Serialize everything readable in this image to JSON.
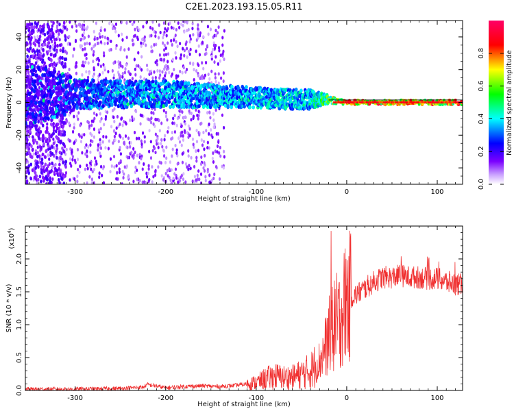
{
  "chart_data": [
    {
      "type": "heatmap",
      "title": "C2E1.2023.193.15.05.R11",
      "xlabel": "Height of straight line (km)",
      "ylabel": "Frequency (Hz)",
      "xlim": [
        -355,
        128
      ],
      "ylim": [
        -50,
        50
      ],
      "xticks": [
        -300,
        -200,
        -100,
        0,
        100
      ],
      "xtick_labels": [
        "-300",
        "-200",
        "-100",
        "0",
        "100"
      ],
      "yticks": [
        -40,
        -20,
        0,
        20,
        40
      ],
      "ytick_labels": [
        "-40",
        "-20",
        "0",
        "20",
        "40"
      ],
      "colorbar": {
        "label": "Normalized spectral amplitude",
        "range": [
          0,
          1
        ],
        "ticks": [
          0.0,
          0.2,
          0.4,
          0.6,
          0.8
        ],
        "tick_labels": [
          "0.0",
          "0.2",
          "0.4",
          "0.6",
          "0.8"
        ],
        "colormap": [
          "#ffffff",
          "#7b00ff",
          "#0000ff",
          "#00ffff",
          "#00ff00",
          "#ffff00",
          "#ff0000",
          "#ff0066"
        ]
      },
      "band": {
        "description_free": true,
        "points": [
          {
            "x": -330,
            "center": 5,
            "half_width": 18,
            "amplitude": 0.25
          },
          {
            "x": -300,
            "center": 5,
            "half_width": 9,
            "amplitude": 0.3
          },
          {
            "x": -250,
            "center": 5,
            "half_width": 8,
            "amplitude": 0.35
          },
          {
            "x": -200,
            "center": 5,
            "half_width": 8,
            "amplitude": 0.4
          },
          {
            "x": -150,
            "center": 4,
            "half_width": 7,
            "amplitude": 0.4
          },
          {
            "x": -100,
            "center": 3,
            "half_width": 6,
            "amplitude": 0.4
          },
          {
            "x": -70,
            "center": 2,
            "half_width": 6,
            "amplitude": 0.45
          },
          {
            "x": -40,
            "center": 2,
            "half_width": 6,
            "amplitude": 0.45
          },
          {
            "x": -25,
            "center": 2,
            "half_width": 3,
            "amplitude": 0.6
          },
          {
            "x": -10,
            "center": 1,
            "half_width": 2,
            "amplitude": 0.75
          },
          {
            "x": 0,
            "center": 0,
            "half_width": 1.5,
            "amplitude": 0.85
          },
          {
            "x": 50,
            "center": 0,
            "half_width": 1.5,
            "amplitude": 0.85
          },
          {
            "x": 128,
            "center": 0,
            "half_width": 1.5,
            "amplitude": 0.85
          }
        ]
      }
    },
    {
      "type": "line",
      "xlabel": "Height of straight line (km)",
      "ylabel": "SNR (10 * v/v)",
      "y_multiplier_label": "(x10",
      "y_multiplier_exp": "4",
      "y_multiplier_close": ")",
      "xlim": [
        -355,
        128
      ],
      "ylim": [
        0,
        2.5
      ],
      "xticks": [
        -300,
        -200,
        -100,
        0,
        100
      ],
      "xtick_labels": [
        "-300",
        "-200",
        "-100",
        "0",
        "100"
      ],
      "yticks": [
        0.0,
        0.5,
        1.0,
        1.5,
        2.0
      ],
      "ytick_labels": [
        "0.0",
        "0.5",
        "1.0",
        "1.5",
        "2.0"
      ],
      "color": "#f03030",
      "series": [
        {
          "x": [
            -355,
            -300,
            -250,
            -225,
            -220,
            -200,
            -180,
            -160,
            -140,
            -120,
            -100,
            -90,
            -80,
            -70,
            -60,
            -50,
            -40,
            -30,
            -25,
            -20,
            -17,
            -15,
            -12,
            -10,
            -8,
            -5,
            0,
            10,
            20,
            30,
            40,
            50,
            60,
            70,
            80,
            90,
            100,
            110,
            120,
            128
          ],
          "y": [
            0.02,
            0.02,
            0.03,
            0.05,
            0.09,
            0.04,
            0.06,
            0.07,
            0.06,
            0.08,
            0.12,
            0.18,
            0.22,
            0.2,
            0.2,
            0.25,
            0.3,
            0.45,
            0.6,
            0.8,
            1.0,
            0.9,
            1.1,
            1.0,
            1.1,
            1.2,
            1.4,
            1.45,
            1.55,
            1.65,
            1.72,
            1.72,
            1.75,
            1.72,
            1.72,
            1.7,
            1.7,
            1.65,
            1.62,
            1.6
          ]
        }
      ]
    }
  ]
}
